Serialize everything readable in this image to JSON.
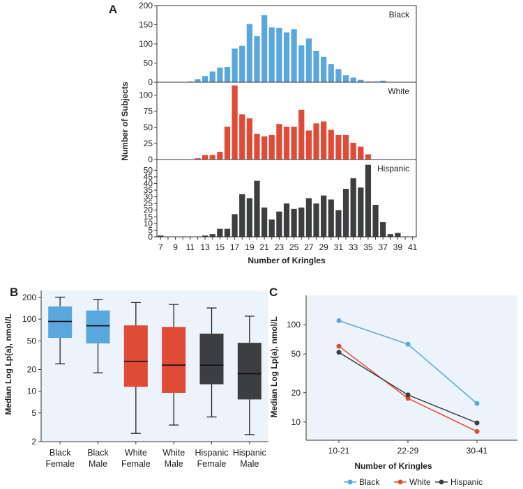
{
  "chart_data": [
    {
      "panel": "A",
      "type": "bar",
      "xlabel": "Number of Kringles",
      "ylabel": "Number of Subjects",
      "x": [
        7,
        8,
        9,
        10,
        11,
        12,
        13,
        14,
        15,
        16,
        17,
        18,
        19,
        20,
        21,
        22,
        23,
        24,
        25,
        26,
        27,
        28,
        29,
        30,
        31,
        32,
        33,
        34,
        35,
        36,
        37,
        38,
        39,
        40,
        41
      ],
      "x_tick_labels": [
        "7",
        "9",
        "11",
        "13",
        "15",
        "17",
        "19",
        "21",
        "23",
        "25",
        "27",
        "29",
        "31",
        "33",
        "35",
        "37",
        "39",
        "41"
      ],
      "subplots": [
        {
          "group": "Black",
          "color": "#5aa7dc",
          "ylim": [
            0,
            200
          ],
          "yticks": [
            0,
            50,
            100,
            150,
            200
          ],
          "values": [
            0,
            0,
            0,
            0,
            2,
            8,
            16,
            28,
            38,
            40,
            88,
            95,
            152,
            120,
            175,
            143,
            142,
            130,
            138,
            96,
            114,
            82,
            66,
            47,
            34,
            18,
            12,
            6,
            2,
            2,
            4,
            0,
            0,
            0,
            0
          ]
        },
        {
          "group": "White",
          "color": "#e04b37",
          "ylim": [
            0,
            120
          ],
          "yticks": [
            0,
            25,
            50,
            75,
            100
          ],
          "values": [
            0,
            0,
            0,
            0,
            0,
            2,
            7,
            7,
            12,
            51,
            115,
            70,
            64,
            40,
            36,
            38,
            55,
            51,
            51,
            77,
            45,
            56,
            59,
            46,
            38,
            38,
            26,
            20,
            8,
            0,
            0,
            0,
            0,
            0,
            0
          ]
        },
        {
          "group": "Hispanic",
          "color": "#3d3e40",
          "ylim": [
            0,
            58
          ],
          "yticks": [
            0,
            5,
            10,
            15,
            20,
            25,
            30,
            35,
            40,
            45,
            50
          ],
          "values": [
            1,
            0,
            0,
            0,
            0,
            0,
            1,
            2,
            6,
            6,
            17,
            32,
            29,
            42,
            22,
            13,
            19,
            25,
            21,
            22,
            29,
            25,
            31,
            28,
            20,
            36,
            44,
            37,
            54,
            24,
            11,
            2,
            3,
            0,
            0
          ]
        }
      ]
    },
    {
      "panel": "B",
      "type": "box",
      "ylabel": "Median Log Lp(a), nmol/L",
      "yscale": "log",
      "ylim": [
        2,
        250
      ],
      "yticks": [
        "2",
        "5",
        "10",
        "20",
        "50",
        "100",
        "200"
      ],
      "boxes": [
        {
          "label1": "Black",
          "label2": "Female",
          "color": "#5aa7dc",
          "whisker_low": 24,
          "q1": 55,
          "median": 93,
          "q3": 150,
          "whisker_high": 202
        },
        {
          "label1": "Black",
          "label2": "Male",
          "color": "#5aa7dc",
          "whisker_low": 18,
          "q1": 46,
          "median": 81,
          "q3": 132,
          "whisker_high": 188
        },
        {
          "label1": "White",
          "label2": "Female",
          "color": "#e04b37",
          "whisker_low": 2.6,
          "q1": 11.5,
          "median": 26,
          "q3": 82,
          "whisker_high": 170
        },
        {
          "label1": "White",
          "label2": "Male",
          "color": "#e04b37",
          "whisker_low": 3.4,
          "q1": 9.5,
          "median": 23,
          "q3": 78,
          "whisker_high": 160
        },
        {
          "label1": "Hispanic",
          "label2": "Female",
          "color": "#3d3e40",
          "whisker_low": 4.4,
          "q1": 12.5,
          "median": 23,
          "q3": 63,
          "whisker_high": 143
        },
        {
          "label1": "Hispanic",
          "label2": "Male",
          "color": "#3d3e40",
          "whisker_low": 2.5,
          "q1": 7.7,
          "median": 17.5,
          "q3": 47,
          "whisker_high": 110
        }
      ]
    },
    {
      "panel": "C",
      "type": "line",
      "xlabel": "Number of Kringles",
      "ylabel": "Median Log Lp(a), nmol/L",
      "yscale": "log",
      "ylim": [
        6.5,
        200
      ],
      "yticks": [
        "10",
        "20",
        "50",
        "100"
      ],
      "categories": [
        "10-21",
        "22-29",
        "30-41"
      ],
      "series": [
        {
          "name": "Black",
          "color": "#5aa7dc",
          "values": [
            110,
            63,
            15.5
          ]
        },
        {
          "name": "White",
          "color": "#e04b37",
          "values": [
            60,
            17.5,
            8
          ]
        },
        {
          "name": "Hispanic",
          "color": "#3d3e40",
          "values": [
            52,
            19,
            9.8
          ]
        }
      ]
    }
  ]
}
